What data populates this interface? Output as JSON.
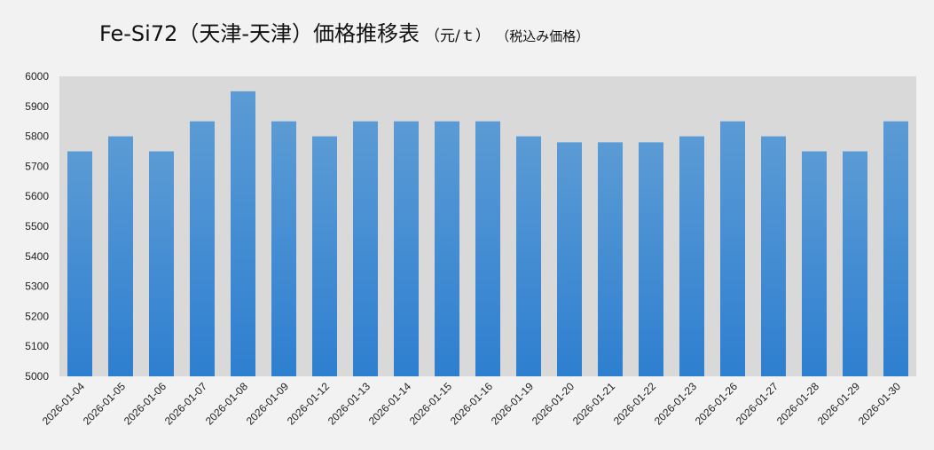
{
  "chart_data": {
    "type": "bar",
    "title": "Fe-Si72（天津-天津）価格推移表",
    "unit_label": "（元/ｔ）",
    "tax_label": "（税込み価格）",
    "xlabel": "",
    "ylabel": "",
    "ylim": [
      5000,
      6000
    ],
    "yticks": [
      5000,
      5100,
      5200,
      5300,
      5400,
      5500,
      5600,
      5700,
      5800,
      5900,
      6000
    ],
    "grid": false,
    "legend": "none",
    "categories": [
      "2026-01-04",
      "2026-01-05",
      "2026-01-06",
      "2026-01-07",
      "2026-01-08",
      "2026-01-09",
      "2026-01-12",
      "2026-01-13",
      "2026-01-14",
      "2026-01-15",
      "2026-01-16",
      "2026-01-19",
      "2026-01-20",
      "2026-01-21",
      "2026-01-22",
      "2026-01-23",
      "2026-01-26",
      "2026-01-27",
      "2026-01-28",
      "2026-01-29",
      "2026-01-30"
    ],
    "values": [
      5750,
      5800,
      5750,
      5850,
      5950,
      5850,
      5800,
      5850,
      5850,
      5850,
      5850,
      5800,
      5780,
      5780,
      5780,
      5800,
      5850,
      5800,
      5750,
      5750,
      5850
    ],
    "colors": {
      "bar_top": "#5b9bd5",
      "bar_bottom": "#2e7fd0",
      "plot_bg": "#d9d9d9"
    }
  }
}
